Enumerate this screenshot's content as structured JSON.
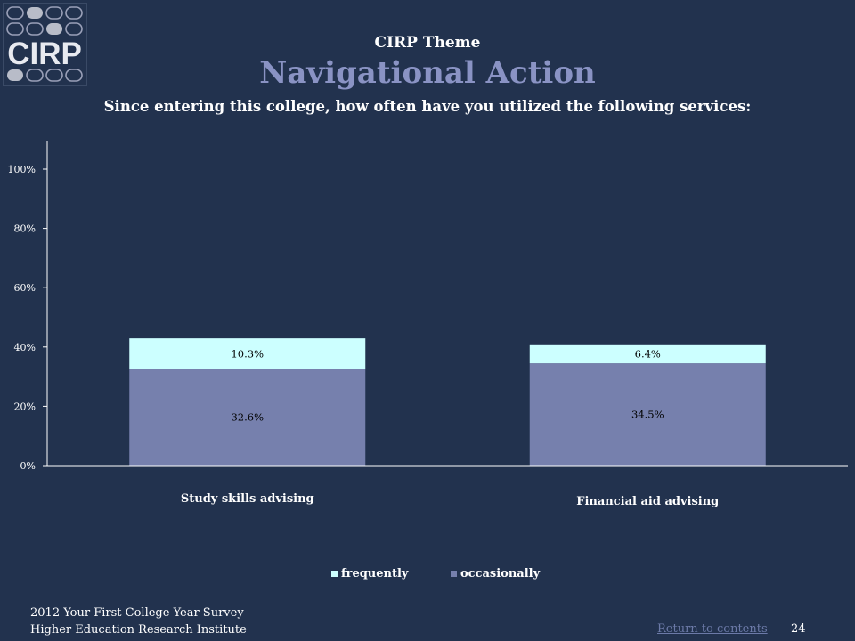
{
  "logo": {
    "text": "CIRP"
  },
  "header": {
    "theme": "CIRP Theme",
    "title": "Navigational Action",
    "question": "Since entering this college, how often have you utilized the following services:"
  },
  "chart_data": {
    "type": "bar",
    "stacked": true,
    "categories": [
      "Study skills advising",
      "Financial aid advising"
    ],
    "series": [
      {
        "name": "occasionally",
        "values": [
          32.6,
          34.5
        ],
        "labels": [
          "32.6%",
          "34.5%"
        ],
        "color": "#7680ad"
      },
      {
        "name": "frequently",
        "values": [
          10.3,
          6.4
        ],
        "labels": [
          "10.3%",
          "6.4%"
        ],
        "color": "#ccffff"
      }
    ],
    "ylim": [
      0,
      100
    ],
    "yticks": [
      0,
      20,
      40,
      60,
      80,
      100
    ],
    "ytick_labels": [
      "0%",
      "20%",
      "40%",
      "60%",
      "80%",
      "100%"
    ],
    "legend_order": [
      "frequently",
      "occasionally"
    ],
    "legend_position": "bottom",
    "grid": false
  },
  "footer": {
    "line1": "2012 Your First College Year Survey",
    "line2": "Higher Education Research Institute",
    "return_link": "Return to contents",
    "page_number": "24"
  },
  "colors": {
    "background": "#22324e",
    "title": "#8a93c4",
    "link": "#6c7aa8"
  }
}
